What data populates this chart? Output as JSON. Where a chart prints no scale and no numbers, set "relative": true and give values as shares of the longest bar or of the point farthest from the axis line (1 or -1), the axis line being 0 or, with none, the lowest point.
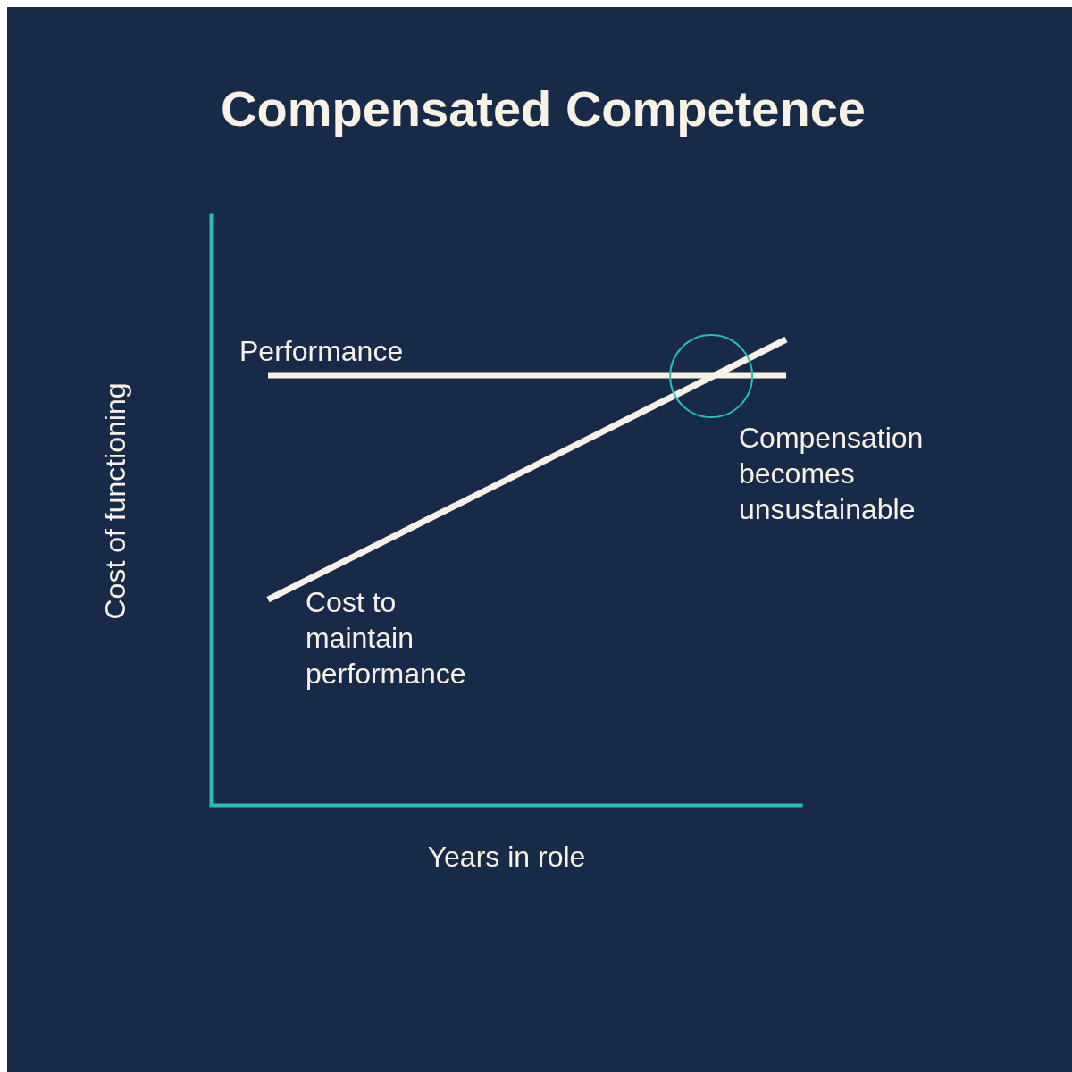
{
  "chart_data": {
    "type": "line",
    "title": "Compensated Competence",
    "xlabel": "Years in role",
    "ylabel": "Cost of functioning",
    "relative": true,
    "categories": [
      null,
      null
    ],
    "marker": "none",
    "line_style": "solid",
    "series": [
      {
        "name": "Performance",
        "color": "#f7f2e6",
        "values": [
          0.923,
          0.923
        ]
      },
      {
        "name": "Cost to maintain performance",
        "color": "#f7f2e6",
        "values": [
          0.441,
          1
        ]
      }
    ],
    "annotations": [
      "Compensation becomes unsustainable"
    ]
  }
}
